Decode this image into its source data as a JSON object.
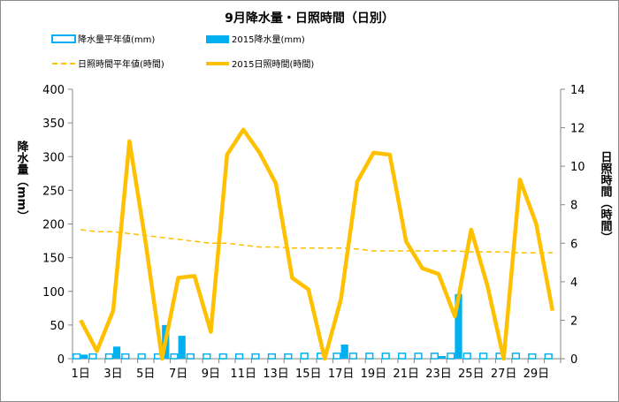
{
  "chart_data": {
    "type": "bar+line",
    "title": "9月降水量・日照時間（日別）",
    "categories": [
      "1",
      "2",
      "3",
      "4",
      "5",
      "6",
      "7",
      "8",
      "9",
      "10",
      "11",
      "12",
      "13",
      "14",
      "15",
      "16",
      "17",
      "18",
      "19",
      "20",
      "21",
      "22",
      "23",
      "24",
      "25",
      "26",
      "27",
      "28",
      "29",
      "30"
    ],
    "x_tick_labels": [
      "1日",
      "3日",
      "5日",
      "7日",
      "9日",
      "11日",
      "13日",
      "15日",
      "17日",
      "19日",
      "21日",
      "23日",
      "25日",
      "27日",
      "29日"
    ],
    "y_left": {
      "label": "降水量（mm）",
      "range": [
        0,
        400
      ],
      "ticks": [
        0,
        50,
        100,
        150,
        200,
        250,
        300,
        350,
        400
      ]
    },
    "y_right": {
      "label": "日照時間（時間）",
      "range": [
        0,
        14
      ],
      "ticks": [
        0,
        2,
        4,
        6,
        8,
        10,
        12,
        14
      ]
    },
    "grid": false,
    "legend_position": "top",
    "series": [
      {
        "name": "降水量平年値(mm)",
        "kind": "bar",
        "axis": "left",
        "style": "outline",
        "color": "#00b0f0",
        "values": [
          7,
          7,
          7,
          7,
          7,
          7,
          7,
          7,
          7,
          7,
          7,
          7,
          7,
          7,
          8,
          8,
          8,
          8,
          8,
          8,
          8,
          8,
          8,
          8,
          8,
          8,
          8,
          8,
          7,
          7
        ]
      },
      {
        "name": "2015降水量(mm)",
        "kind": "bar",
        "axis": "left",
        "style": "filled",
        "color": "#00b0f0",
        "values": [
          6,
          0,
          18,
          0,
          0,
          50,
          34,
          0,
          0,
          0,
          0,
          0,
          0,
          0,
          0,
          0,
          21,
          0,
          0,
          0,
          0,
          0,
          4,
          96,
          0,
          0,
          0,
          0,
          0,
          0
        ]
      },
      {
        "name": "日照時間平年値(時間)",
        "kind": "line",
        "axis": "right",
        "style": "dashed",
        "color": "#ffc000",
        "values": [
          6.7,
          6.6,
          6.6,
          6.5,
          6.4,
          6.3,
          6.2,
          6.1,
          6.0,
          6.0,
          5.9,
          5.8,
          5.8,
          5.75,
          5.75,
          5.75,
          5.75,
          5.7,
          5.6,
          5.6,
          5.6,
          5.6,
          5.6,
          5.6,
          5.55,
          5.55,
          5.55,
          5.5,
          5.5,
          5.5
        ]
      },
      {
        "name": "2015日照時間(時間)",
        "kind": "line",
        "axis": "right",
        "style": "solid",
        "color": "#ffc000",
        "values": [
          2.0,
          0.4,
          2.5,
          11.3,
          6.0,
          0.0,
          4.2,
          4.3,
          1.4,
          10.6,
          11.9,
          10.7,
          9.1,
          4.2,
          3.6,
          0.0,
          3.1,
          9.2,
          10.7,
          10.6,
          6.1,
          4.7,
          4.4,
          2.2,
          6.7,
          3.8,
          0.0,
          9.3,
          7.0,
          2.5
        ]
      }
    ]
  }
}
